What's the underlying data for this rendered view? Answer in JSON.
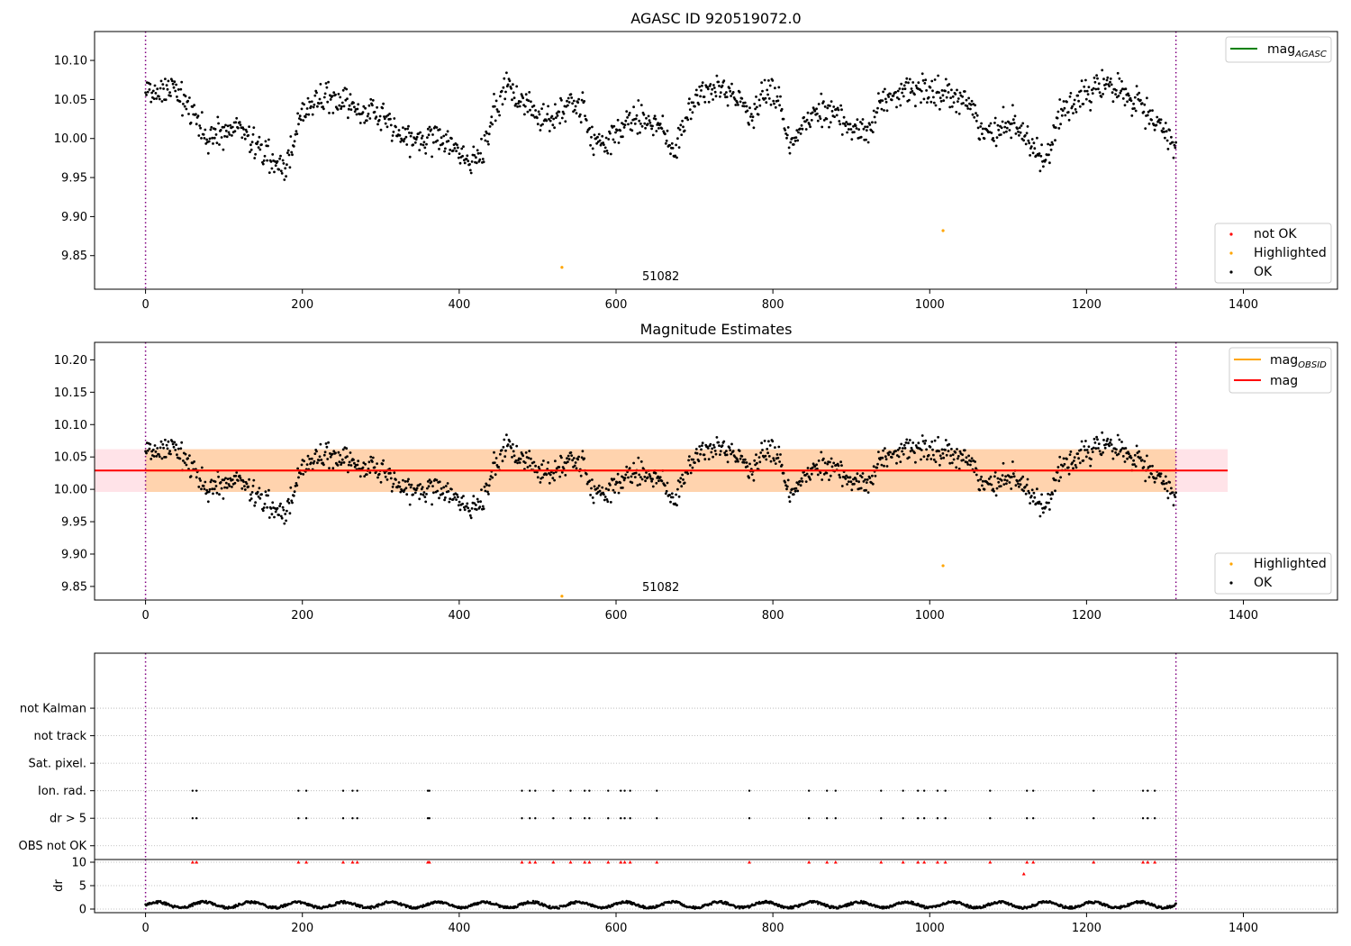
{
  "chart_data": [
    {
      "type": "scatter",
      "title": "AGASC ID 920519072.0",
      "xlim": [
        -65,
        1520
      ],
      "ylim": [
        9.807,
        10.137
      ],
      "xticks": [
        0,
        200,
        400,
        600,
        800,
        1000,
        1200,
        1400
      ],
      "yticks": [
        9.85,
        9.9,
        9.95,
        10.0,
        10.05,
        10.1
      ],
      "ytick_labels": [
        "9.85",
        "9.90",
        "9.95",
        "10.00",
        "10.05",
        "10.10"
      ],
      "vlines": [
        0,
        1314
      ],
      "obsid_label": {
        "text": "51082",
        "x": 657
      },
      "series": [
        {
          "name": "not OK",
          "color": "#ff0000",
          "points": []
        },
        {
          "name": "Highlighted",
          "color": "#ffa500",
          "points": [
            [
              531,
              9.835
            ],
            [
              1017,
              9.882
            ]
          ]
        },
        {
          "name": "OK",
          "color": "#000000",
          "count": 1314,
          "y_range": [
            9.94,
            10.105
          ]
        }
      ],
      "legend_lines": [
        {
          "base": "mag",
          "sub": "AGASC",
          "color": "#008000"
        }
      ],
      "legend_points": [
        "not OK",
        "Highlighted",
        "OK"
      ]
    },
    {
      "type": "scatter",
      "title": "Magnitude Estimates",
      "xlim": [
        -65,
        1520
      ],
      "ylim": [
        9.829,
        10.227
      ],
      "xticks": [
        0,
        200,
        400,
        600,
        800,
        1000,
        1200,
        1400
      ],
      "yticks": [
        9.85,
        9.9,
        9.95,
        10.0,
        10.05,
        10.1,
        10.15,
        10.2
      ],
      "ytick_labels": [
        "9.85",
        "9.90",
        "9.95",
        "10.00",
        "10.05",
        "10.10",
        "10.15",
        "10.20"
      ],
      "vlines": [
        0,
        1314
      ],
      "obsid_label": {
        "text": "51082",
        "x": 657
      },
      "mag": 10.029,
      "mag_band": [
        9.996,
        10.062
      ],
      "mag_obsid": 10.029,
      "mag_obsid_band": [
        9.996,
        10.062
      ],
      "band_x_range": [
        -65,
        1380
      ],
      "obsid_band_x_range": [
        0,
        1314
      ],
      "series": [
        {
          "name": "Highlighted",
          "color": "#ffa500",
          "points": [
            [
              531,
              9.835
            ],
            [
              1017,
              9.882
            ]
          ]
        },
        {
          "name": "OK",
          "color": "#000000",
          "count": 1314
        }
      ],
      "legend_lines": [
        {
          "base": "mag",
          "sub": "OBSID",
          "color": "#ffa500"
        },
        {
          "base": "mag",
          "sub": "",
          "color": "#ff0000"
        }
      ],
      "legend_points": [
        "Highlighted",
        "OK"
      ]
    },
    {
      "type": "scatter",
      "title": "",
      "xlim": [
        -65,
        1520
      ],
      "xticks": [
        0,
        200,
        400,
        600,
        800,
        1000,
        1200,
        1400
      ],
      "vlines": [
        0,
        1314
      ],
      "flag_rows": [
        "not Kalman",
        "not track",
        "Sat. pixel.",
        "Ion. rad.",
        "dr > 5",
        "OBS not OK"
      ],
      "flag_events_x": [
        60,
        65,
        195,
        205,
        252,
        264,
        270,
        360,
        362,
        480,
        490,
        497,
        520,
        542,
        560,
        566,
        590,
        606,
        611,
        618,
        652,
        770,
        846,
        869,
        880,
        938,
        966,
        985,
        993,
        1010,
        1020,
        1077,
        1124,
        1132,
        1209,
        1272,
        1278,
        1287
      ],
      "flagged_rows": [
        "Ion. rad.",
        "dr > 5"
      ]
    },
    {
      "type": "scatter",
      "title": "",
      "ylabel": "dr",
      "xlim": [
        -65,
        1520
      ],
      "ylim": [
        0,
        10
      ],
      "xticks": [
        0,
        200,
        400,
        600,
        800,
        1000,
        1200,
        1400
      ],
      "yticks": [
        0,
        5,
        10
      ],
      "ytick_labels": [
        "0",
        "5",
        "10"
      ],
      "vlines": [
        0,
        1314
      ],
      "clipped_at": 10,
      "red_points": [
        [
          60,
          10
        ],
        [
          65,
          10
        ],
        [
          195,
          10
        ],
        [
          205,
          10
        ],
        [
          252,
          10
        ],
        [
          264,
          10
        ],
        [
          270,
          10
        ],
        [
          360,
          10
        ],
        [
          362,
          10
        ],
        [
          480,
          10
        ],
        [
          490,
          10
        ],
        [
          497,
          10
        ],
        [
          520,
          10
        ],
        [
          542,
          10
        ],
        [
          560,
          10
        ],
        [
          566,
          10
        ],
        [
          590,
          10
        ],
        [
          606,
          10
        ],
        [
          611,
          10
        ],
        [
          618,
          10
        ],
        [
          652,
          10
        ],
        [
          770,
          10
        ],
        [
          846,
          10
        ],
        [
          869,
          10
        ],
        [
          880,
          10
        ],
        [
          938,
          10
        ],
        [
          966,
          10
        ],
        [
          985,
          10
        ],
        [
          993,
          10
        ],
        [
          1010,
          10
        ],
        [
          1020,
          10
        ],
        [
          1077,
          10
        ],
        [
          1124,
          10
        ],
        [
          1132,
          10
        ],
        [
          1209,
          10
        ],
        [
          1272,
          10
        ],
        [
          1278,
          10
        ],
        [
          1287,
          10
        ],
        [
          1120,
          7.5
        ]
      ],
      "black_y_range": [
        0,
        2.2
      ]
    }
  ]
}
